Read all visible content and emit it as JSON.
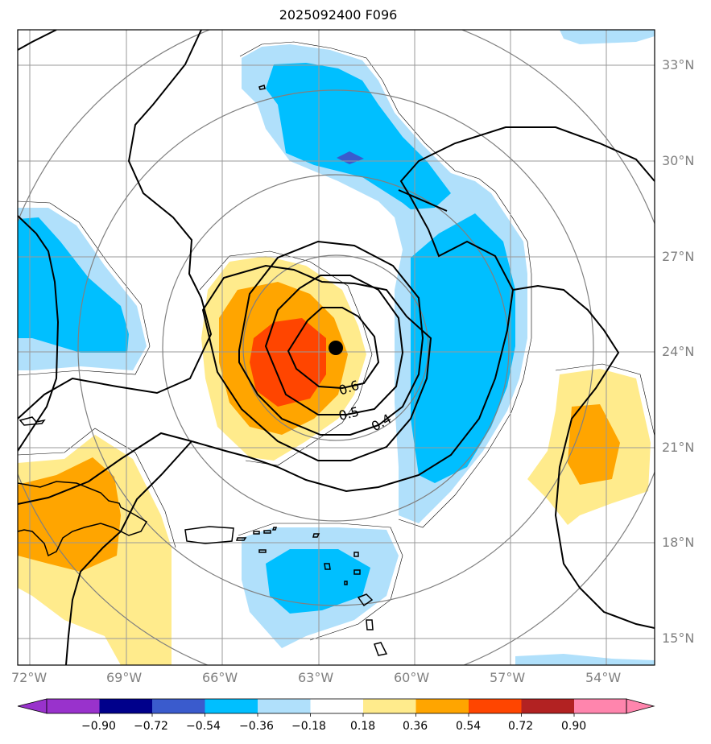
{
  "title": "2025092400 F096",
  "colors": {
    "neg_090": "#9932cc",
    "neg_072": "#00008b",
    "neg_054": "#3a5bcd",
    "neg_036": "#00bfff",
    "neg_018": "#b0e0fb",
    "neutral": "#ffffff",
    "pos_018": "#ffeb8c",
    "pos_036": "#ffa500",
    "pos_054": "#ff4500",
    "pos_072": "#b22222",
    "pos_090": "#ff85ad",
    "grid": "#999999",
    "range_rings": "#808080",
    "contour": "#000000",
    "storm_center": "#000000"
  },
  "map": {
    "lon_range": [
      -72.3,
      -52.9
    ],
    "lat_range": [
      14.2,
      34.1
    ],
    "lon_ticks": [
      "72°W",
      "69°W",
      "66°W",
      "63°W",
      "60°W",
      "57°W",
      "54°W"
    ],
    "lat_ticks": [
      "33°N",
      "30°N",
      "27°N",
      "24°N",
      "21°N",
      "18°N",
      "15°N"
    ],
    "storm_center": {
      "lon": -62.5,
      "lat": 24.1,
      "icon": "storm-center-dot-icon"
    },
    "contour_labels": [
      "0.6",
      "0.5",
      "0.4"
    ]
  },
  "colorbar": {
    "labels": [
      "−0.90",
      "−0.72",
      "−0.54",
      "−0.36",
      "−0.18",
      "0.18",
      "0.36",
      "0.54",
      "0.72",
      "0.90"
    ]
  }
}
